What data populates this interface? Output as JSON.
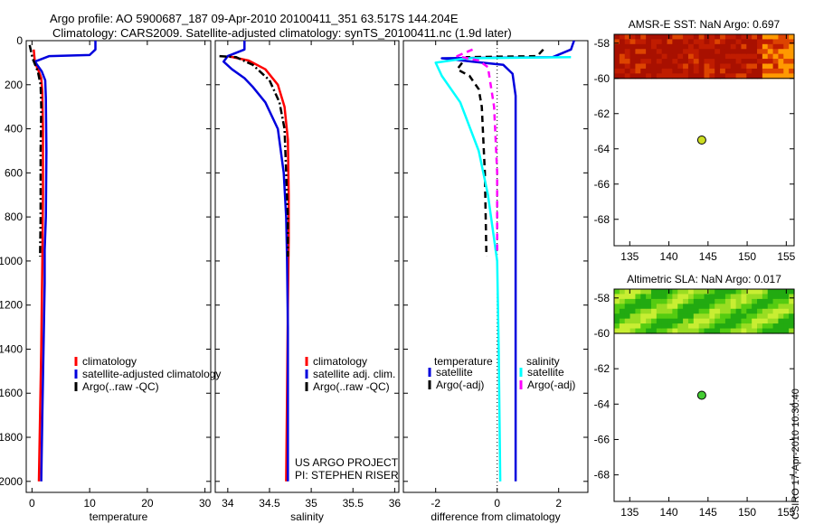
{
  "header": {
    "line1": "Argo profile: AO 5900687_187 09-Apr-2010 20100411_351 63.517S 144.204E",
    "line2": "Climatology: CARS2009. Satellite-adjusted climatology: synTS_20100411.nc (1.9d later)"
  },
  "credit": "CSIRO 17-Apr-2010 10:30:40",
  "chart_data": [
    {
      "type": "line",
      "id": "temperature",
      "xlabel": "temperature",
      "ylabel": "",
      "xlim": [
        -1,
        31
      ],
      "ylim": [
        2050,
        0
      ],
      "xticks": [
        0,
        10,
        20,
        30
      ],
      "yticks": [
        0,
        200,
        400,
        600,
        800,
        1000,
        1200,
        1400,
        1600,
        1800,
        2000
      ],
      "legend": [
        "climatology",
        "satellite-adjusted climatology",
        "Argo(..raw -QC)"
      ],
      "series": [
        {
          "name": "climatology",
          "color": "#ff0000",
          "dash": "solid",
          "points": [
            [
              0.3,
              40
            ],
            [
              0.5,
              100
            ],
            [
              1.2,
              140
            ],
            [
              1.6,
              170
            ],
            [
              1.8,
              230
            ],
            [
              1.9,
              400
            ],
            [
              1.9,
              700
            ],
            [
              1.8,
              1000
            ],
            [
              1.6,
              1400
            ],
            [
              1.4,
              1700
            ],
            [
              1.2,
              2000
            ]
          ]
        },
        {
          "name": "satellite-adjusted climatology",
          "color": "#0000dd",
          "dash": "solid",
          "points": [
            [
              11,
              0
            ],
            [
              11,
              40
            ],
            [
              10,
              65
            ],
            [
              3,
              70
            ],
            [
              0.5,
              95
            ],
            [
              1.7,
              140
            ],
            [
              2.3,
              180
            ],
            [
              2.4,
              260
            ],
            [
              2.5,
              500
            ],
            [
              2.4,
              800
            ],
            [
              2.2,
              950
            ],
            [
              2.2,
              1100
            ],
            [
              2.0,
              1400
            ],
            [
              1.8,
              1700
            ],
            [
              1.6,
              2000
            ]
          ]
        },
        {
          "name": "Argo(..raw -QC)",
          "color": "#000000",
          "dash": "dashdot",
          "points": [
            [
              -0.4,
              20
            ],
            [
              0.1,
              80
            ],
            [
              1.0,
              140
            ],
            [
              1.5,
              200
            ],
            [
              1.6,
              300
            ],
            [
              1.5,
              500
            ],
            [
              1.5,
              800
            ],
            [
              1.4,
              980
            ]
          ]
        }
      ]
    },
    {
      "type": "line",
      "id": "salinity",
      "xlabel": "salinity",
      "ylabel": "",
      "xlim": [
        33.85,
        36.05
      ],
      "ylim": [
        2050,
        0
      ],
      "xticks": [
        34,
        34.5,
        35,
        35.5,
        36
      ],
      "legend": [
        "climatology",
        "satellite adj. clim.",
        "Argo(..raw -QC)"
      ],
      "annotation": [
        "US ARGO PROJECT",
        "PI: STEPHEN RISER"
      ],
      "series": [
        {
          "name": "climatology",
          "color": "#ff0000",
          "dash": "solid",
          "points": [
            [
              34.0,
              70
            ],
            [
              34.25,
              90
            ],
            [
              34.45,
              130
            ],
            [
              34.6,
              200
            ],
            [
              34.68,
              300
            ],
            [
              34.72,
              450
            ],
            [
              34.73,
              700
            ],
            [
              34.73,
              900
            ],
            [
              34.72,
              1200
            ],
            [
              34.71,
              1600
            ],
            [
              34.7,
              2000
            ]
          ]
        },
        {
          "name": "satellite adj. clim.",
          "color": "#0000dd",
          "dash": "solid",
          "points": [
            [
              34.2,
              0
            ],
            [
              34.2,
              40
            ],
            [
              34.0,
              70
            ],
            [
              33.95,
              95
            ],
            [
              34.05,
              130
            ],
            [
              34.2,
              170
            ],
            [
              34.3,
              210
            ],
            [
              34.45,
              280
            ],
            [
              34.6,
              400
            ],
            [
              34.67,
              600
            ],
            [
              34.7,
              800
            ],
            [
              34.71,
              1000
            ],
            [
              34.72,
              1300
            ],
            [
              34.72,
              1600
            ],
            [
              34.72,
              2000
            ]
          ]
        },
        {
          "name": "Argo(..raw -QC)",
          "color": "#000000",
          "dash": "dashdot",
          "points": [
            [
              33.9,
              70
            ],
            [
              34.1,
              75
            ],
            [
              34.3,
              110
            ],
            [
              34.5,
              180
            ],
            [
              34.62,
              280
            ],
            [
              34.68,
              400
            ],
            [
              34.7,
              600
            ],
            [
              34.72,
              800
            ],
            [
              34.72,
              980
            ]
          ]
        }
      ]
    },
    {
      "type": "line",
      "id": "difference",
      "xlabel": "difference from climatology",
      "ylabel": "",
      "xlim": [
        -3.05,
        2.95
      ],
      "ylim": [
        2050,
        0
      ],
      "xticks": [
        -2,
        0,
        2
      ],
      "legend_titles": [
        "temperature",
        "salinity"
      ],
      "legend": [
        "satellite",
        "Argo(-adj)",
        "satellite",
        "Argo(-adj)"
      ],
      "series": [
        {
          "name": "temperature satellite",
          "color": "#0000dd",
          "dash": "solid",
          "points": [
            [
              2.5,
              0
            ],
            [
              2.4,
              40
            ],
            [
              1.8,
              75
            ],
            [
              -1.8,
              80
            ],
            [
              -0.8,
              95
            ],
            [
              0.2,
              110
            ],
            [
              0.5,
              150
            ],
            [
              0.6,
              250
            ],
            [
              0.6,
              500
            ],
            [
              0.6,
              800
            ],
            [
              0.6,
              1200
            ],
            [
              0.6,
              1600
            ],
            [
              0.6,
              2000
            ]
          ]
        },
        {
          "name": "temperature Argo(-adj)",
          "color": "#000000",
          "dash": "dashed",
          "points": [
            [
              1.5,
              40
            ],
            [
              1.3,
              70
            ],
            [
              -1.0,
              75
            ],
            [
              -1.3,
              130
            ],
            [
              -0.9,
              160
            ],
            [
              -0.6,
              220
            ],
            [
              -0.5,
              300
            ],
            [
              -0.4,
              600
            ],
            [
              -0.35,
              980
            ]
          ]
        },
        {
          "name": "salinity satellite",
          "color": "#00ffff",
          "dash": "solid",
          "points": [
            [
              2.4,
              75
            ],
            [
              -1.0,
              80
            ],
            [
              -2.0,
              100
            ],
            [
              -1.8,
              160
            ],
            [
              -1.2,
              280
            ],
            [
              -0.6,
              500
            ],
            [
              -0.3,
              700
            ],
            [
              -0.1,
              900
            ],
            [
              0.0,
              1000
            ],
            [
              0.05,
              1400
            ],
            [
              0.1,
              2000
            ]
          ]
        },
        {
          "name": "salinity Argo(-adj)",
          "color": "#ff00ff",
          "dash": "dashed",
          "points": [
            [
              -0.8,
              40
            ],
            [
              -1.3,
              70
            ],
            [
              -0.6,
              90
            ],
            [
              -0.3,
              120
            ],
            [
              -0.1,
              300
            ],
            [
              0.0,
              600
            ],
            [
              0.0,
              900
            ],
            [
              0.0,
              960
            ]
          ]
        }
      ]
    },
    {
      "type": "heatmap",
      "id": "sst",
      "title": "AMSR-E SST: NaN Argo: 0.697",
      "xlim": [
        133,
        156
      ],
      "ylim": [
        -69.5,
        -57.5
      ],
      "xticks": [
        135,
        140,
        145,
        150,
        155
      ],
      "yticks": [
        -58,
        -60,
        -62,
        -64,
        -66,
        -68
      ],
      "field_lat_range": [
        -60,
        -57.5
      ],
      "argo_position": [
        144.2,
        -63.5
      ],
      "marker_color": "#ccdd22"
    },
    {
      "type": "heatmap",
      "id": "sla",
      "title": "Altimetric SLA: NaN Argo: 0.017",
      "xlim": [
        133,
        156
      ],
      "ylim": [
        -69.5,
        -57.5
      ],
      "xticks": [
        135,
        140,
        145,
        150,
        155
      ],
      "yticks": [
        -58,
        -60,
        -62,
        -64,
        -66,
        -68
      ],
      "field_lat_range": [
        -60,
        -57.5
      ],
      "argo_position": [
        144.2,
        -63.5
      ],
      "marker_color": "#44cc33"
    }
  ]
}
